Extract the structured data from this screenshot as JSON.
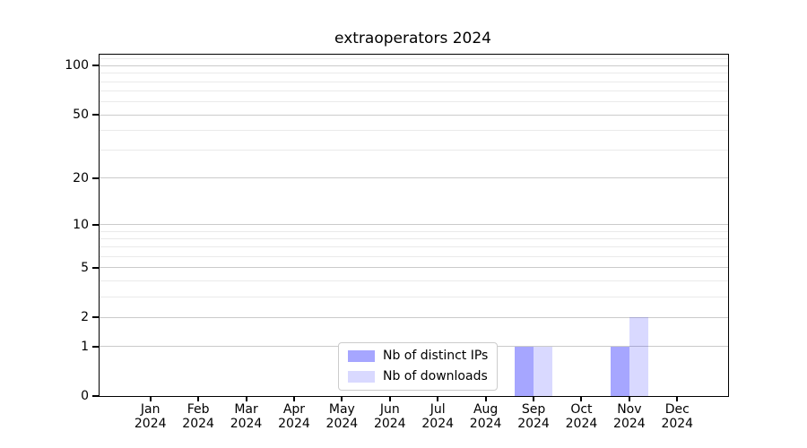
{
  "title": "extraoperators 2024",
  "chart_data": {
    "type": "bar",
    "title": "extraoperators 2024",
    "categories": [
      {
        "month": "Jan",
        "year": "2024"
      },
      {
        "month": "Feb",
        "year": "2024"
      },
      {
        "month": "Mar",
        "year": "2024"
      },
      {
        "month": "Apr",
        "year": "2024"
      },
      {
        "month": "May",
        "year": "2024"
      },
      {
        "month": "Jun",
        "year": "2024"
      },
      {
        "month": "Jul",
        "year": "2024"
      },
      {
        "month": "Aug",
        "year": "2024"
      },
      {
        "month": "Sep",
        "year": "2024"
      },
      {
        "month": "Oct",
        "year": "2024"
      },
      {
        "month": "Nov",
        "year": "2024"
      },
      {
        "month": "Dec",
        "year": "2024"
      }
    ],
    "series": [
      {
        "name": "Nb of distinct IPs",
        "color": "#0000ff",
        "opacity": 0.35,
        "effective_hex": "#a6a6f7",
        "values": [
          0,
          0,
          0,
          0,
          0,
          0,
          0,
          0,
          1,
          0,
          1,
          0
        ]
      },
      {
        "name": "Nb of downloads",
        "color": "#0000ff",
        "opacity": 0.15,
        "effective_hex": "#d9d9fb",
        "values": [
          0,
          0,
          0,
          0,
          0,
          0,
          0,
          0,
          1,
          0,
          2,
          0
        ]
      }
    ],
    "yscale": "log1p",
    "ylim": [
      0,
      117
    ],
    "y_major_ticks": [
      0,
      1,
      2,
      5,
      10,
      20,
      50,
      100
    ],
    "y_minor_ticks": [
      3,
      4,
      6,
      7,
      8,
      9,
      30,
      40,
      60,
      70,
      80,
      90,
      110
    ],
    "grid": "horizontal",
    "legend_position": "lower center"
  },
  "colors": {
    "grid_major": "#cbcbcb",
    "grid_minor": "#eaeaea",
    "axis": "#000000",
    "legend_border": "#cccccc",
    "background": "#ffffff"
  }
}
